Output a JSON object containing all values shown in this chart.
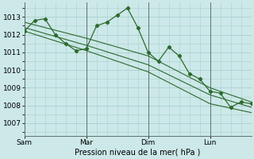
{
  "bg_color": "#cce8e8",
  "grid_color": "#aacfcf",
  "line_color": "#2d6a2d",
  "title": "Pression niveau de la mer( hPa )",
  "yticks": [
    1007,
    1008,
    1009,
    1010,
    1011,
    1012,
    1013
  ],
  "ylim": [
    1006.3,
    1013.8
  ],
  "xtick_labels": [
    "Sam",
    "Mar",
    "Dim",
    "Lun"
  ],
  "xtick_positions": [
    0,
    36,
    72,
    108
  ],
  "vlines": [
    0,
    36,
    72,
    108
  ],
  "series_main": {
    "x": [
      0,
      6,
      12,
      18,
      24,
      30,
      36,
      42,
      48,
      54,
      60,
      66,
      72,
      78,
      84,
      90,
      96,
      102,
      108,
      114,
      120,
      126,
      132
    ],
    "y": [
      1012.2,
      1012.8,
      1012.9,
      1012.0,
      1011.5,
      1011.1,
      1011.2,
      1012.5,
      1012.7,
      1013.1,
      1013.5,
      1012.4,
      1011.0,
      1010.5,
      1011.3,
      1010.8,
      1009.8,
      1009.5,
      1008.8,
      1008.7,
      1007.9,
      1008.2,
      1008.1
    ]
  },
  "line1": {
    "x": [
      0,
      36,
      72,
      108,
      132
    ],
    "y": [
      1012.7,
      1011.8,
      1010.8,
      1009.0,
      1008.2
    ]
  },
  "line2": {
    "x": [
      0,
      36,
      72,
      108,
      132
    ],
    "y": [
      1012.4,
      1011.4,
      1010.3,
      1008.6,
      1007.9
    ]
  },
  "line3": {
    "x": [
      0,
      36,
      72,
      108,
      132
    ],
    "y": [
      1012.2,
      1011.1,
      1009.9,
      1008.1,
      1007.6
    ]
  },
  "xlim": [
    0,
    132
  ]
}
